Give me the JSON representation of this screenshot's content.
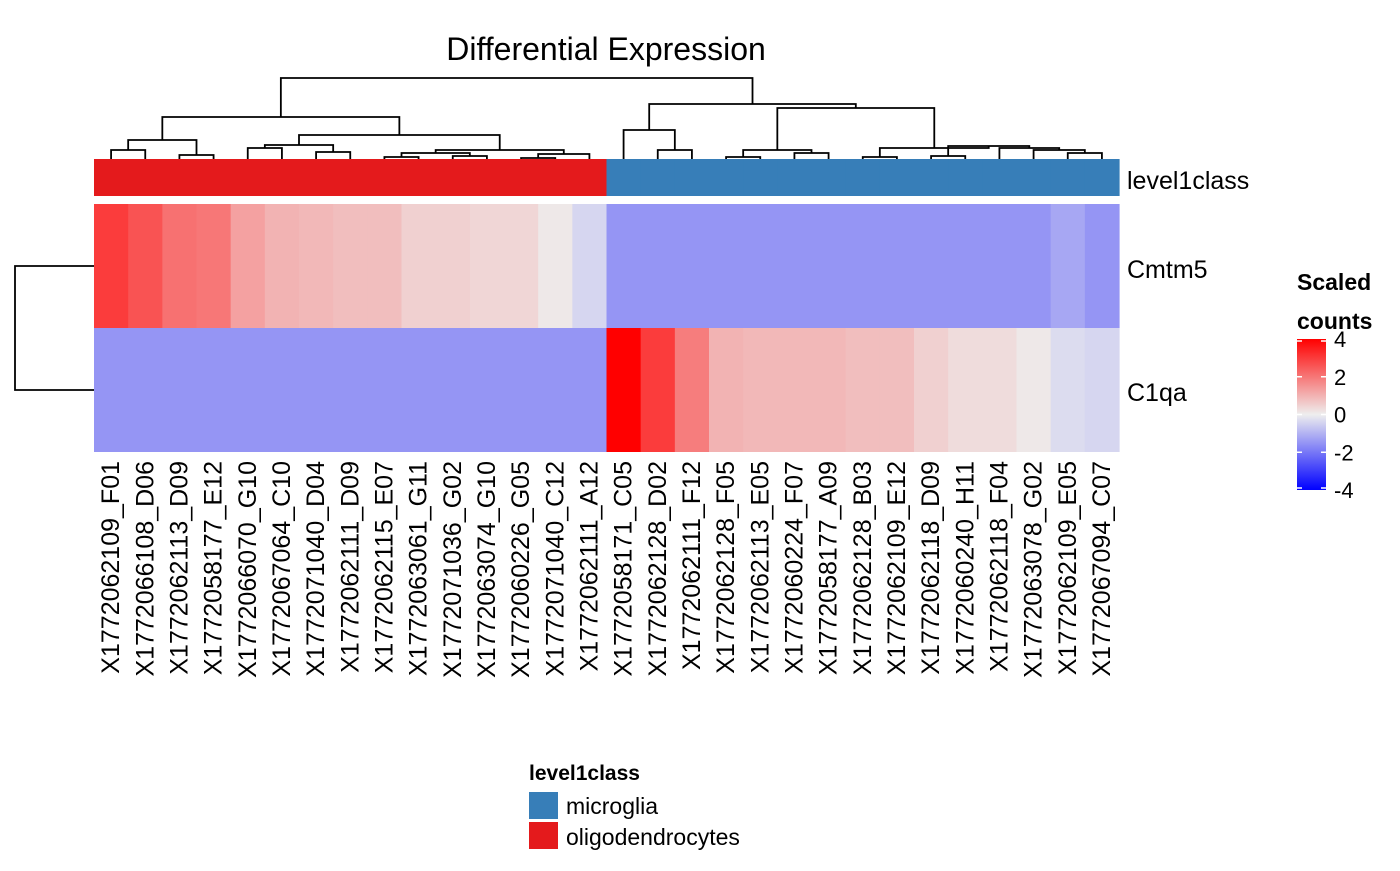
{
  "chart_data": {
    "type": "heatmap",
    "title": "Differential Expression",
    "rows": [
      "Cmtm5",
      "C1qa"
    ],
    "columns": [
      "X1772062109_F01",
      "X1772066108_D06",
      "X1772062113_D09",
      "X1772058177_E12",
      "X1772066070_G10",
      "X1772067064_C10",
      "X1772071040_D04",
      "X1772062111_D09",
      "X1772062115_E07",
      "X1772063061_G11",
      "X1772071036_G02",
      "X1772063074_G10",
      "X1772060226_G05",
      "X1772071040_C12",
      "X1772062111_A12",
      "X1772058171_C05",
      "X1772062128_D02",
      "X1772062111_F12",
      "X1772062128_F05",
      "X1772062113_E05",
      "X1772060224_F07",
      "X1772058177_A09",
      "X1772062128_B03",
      "X1772062109_E12",
      "X1772062118_D09",
      "X1772060240_H11",
      "X1772062118_F04",
      "X1772063078_G02",
      "X1772062109_E05",
      "X1772067094_C07"
    ],
    "values": [
      [
        3.0,
        2.6,
        2.1,
        2.0,
        1.3,
        1.0,
        0.9,
        0.8,
        0.8,
        0.5,
        0.5,
        0.4,
        0.4,
        0.1,
        -0.4,
        -1.5,
        -1.5,
        -1.5,
        -1.5,
        -1.5,
        -1.5,
        -1.5,
        -1.5,
        -1.5,
        -1.5,
        -1.5,
        -1.5,
        -1.5,
        -1.2,
        -1.5
      ],
      [
        -1.5,
        -1.5,
        -1.5,
        -1.5,
        -1.5,
        -1.5,
        -1.5,
        -1.5,
        -1.5,
        -1.5,
        -1.5,
        -1.5,
        -1.5,
        -1.5,
        -1.5,
        4.2,
        3.0,
        1.9,
        1.0,
        0.9,
        0.9,
        0.9,
        0.8,
        0.8,
        0.5,
        0.3,
        0.3,
        0.1,
        -0.3,
        -0.4
      ]
    ],
    "annotation": {
      "name": "level1class",
      "classes": [
        "oligodendrocytes",
        "oligodendrocytes",
        "oligodendrocytes",
        "oligodendrocytes",
        "oligodendrocytes",
        "oligodendrocytes",
        "oligodendrocytes",
        "oligodendrocytes",
        "oligodendrocytes",
        "oligodendrocytes",
        "oligodendrocytes",
        "oligodendrocytes",
        "oligodendrocytes",
        "oligodendrocytes",
        "oligodendrocytes",
        "microglia",
        "microglia",
        "microglia",
        "microglia",
        "microglia",
        "microglia",
        "microglia",
        "microglia",
        "microglia",
        "microglia",
        "microglia",
        "microglia",
        "microglia",
        "microglia",
        "microglia"
      ],
      "colors": {
        "microglia": "#377EB8",
        "oligodendrocytes": "#E41A1C"
      }
    },
    "color_scale": {
      "title_line1": "Scaled",
      "title_line2": "counts",
      "range": [
        -4,
        4
      ],
      "low": "#0000FF",
      "mid": "#EEEEEE",
      "high": "#FF0000",
      "ticks": [
        "4",
        "2",
        "0",
        "-2",
        "-4"
      ]
    },
    "legend": {
      "title": "level1class",
      "items": [
        {
          "label": "microglia",
          "color": "#377EB8"
        },
        {
          "label": "oligodendrocytes",
          "color": "#E41A1C"
        }
      ]
    },
    "dendrogram": {
      "row": true,
      "column": true
    }
  }
}
